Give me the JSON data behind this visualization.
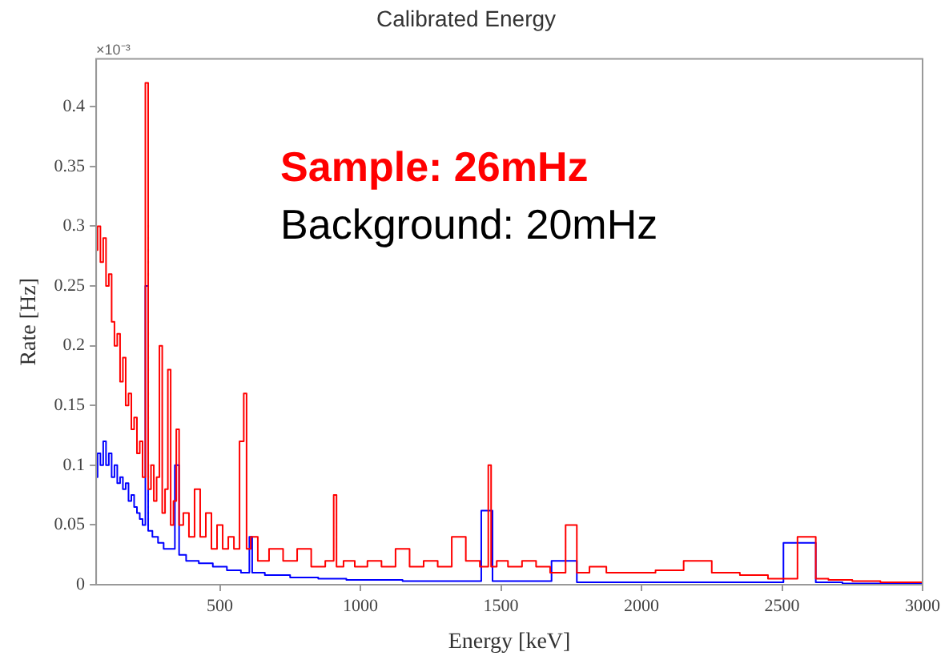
{
  "chart_data": {
    "type": "step",
    "title": "Calibrated Energy",
    "xlabel": "Energy [keV]",
    "ylabel": "Rate [Hz]",
    "annotations": [
      "×10⁻³",
      "Sample: 26mHz",
      "Background: 20mHz"
    ],
    "xlim": [
      60,
      3000
    ],
    "xticks": [
      500,
      1000,
      1500,
      2000,
      2500,
      3000
    ],
    "ylim": [
      0,
      0.44
    ],
    "yticks": [
      0,
      0.05,
      0.1,
      0.15,
      0.2,
      0.25,
      0.3,
      0.35,
      0.4
    ],
    "grid": false,
    "legend": false,
    "marker": "none",
    "line_style": "solid",
    "series": [
      {
        "color": "#ff0000",
        "x": [
          60,
          70,
          80,
          90,
          100,
          110,
          120,
          130,
          140,
          150,
          160,
          170,
          180,
          190,
          200,
          210,
          220,
          230,
          240,
          250,
          260,
          270,
          280,
          290,
          300,
          310,
          320,
          330,
          340,
          350,
          360,
          380,
          400,
          420,
          440,
          460,
          480,
          500,
          520,
          540,
          560,
          580,
          590,
          600,
          620,
          650,
          700,
          750,
          800,
          850,
          900,
          910,
          920,
          960,
          1000,
          1050,
          1100,
          1150,
          1200,
          1250,
          1300,
          1350,
          1400,
          1450,
          1460,
          1470,
          1500,
          1550,
          1600,
          1650,
          1700,
          1760,
          1780,
          1850,
          1900,
          2000,
          2100,
          2200,
          2300,
          2400,
          2500,
          2610,
          2630,
          2700,
          2800,
          2900,
          3000
        ],
        "values": [
          0.28,
          0.3,
          0.27,
          0.29,
          0.25,
          0.26,
          0.22,
          0.2,
          0.21,
          0.17,
          0.19,
          0.15,
          0.16,
          0.13,
          0.14,
          0.11,
          0.12,
          0.09,
          0.42,
          0.08,
          0.1,
          0.07,
          0.09,
          0.2,
          0.06,
          0.08,
          0.18,
          0.05,
          0.07,
          0.13,
          0.05,
          0.06,
          0.04,
          0.08,
          0.04,
          0.06,
          0.03,
          0.05,
          0.03,
          0.04,
          0.03,
          0.12,
          0.16,
          0.03,
          0.04,
          0.02,
          0.03,
          0.02,
          0.03,
          0.015,
          0.02,
          0.075,
          0.015,
          0.02,
          0.015,
          0.02,
          0.015,
          0.03,
          0.015,
          0.02,
          0.015,
          0.04,
          0.02,
          0.015,
          0.1,
          0.015,
          0.02,
          0.015,
          0.02,
          0.015,
          0.01,
          0.05,
          0.01,
          0.015,
          0.01,
          0.01,
          0.012,
          0.02,
          0.01,
          0.008,
          0.005,
          0.04,
          0.005,
          0.004,
          0.003,
          0.002,
          0.002
        ]
      },
      {
        "color": "#0000ff",
        "x": [
          60,
          70,
          80,
          90,
          100,
          110,
          120,
          130,
          140,
          150,
          160,
          170,
          180,
          190,
          200,
          210,
          220,
          230,
          240,
          250,
          270,
          290,
          310,
          330,
          350,
          360,
          400,
          450,
          500,
          550,
          600,
          610,
          620,
          700,
          800,
          900,
          1000,
          1100,
          1200,
          1300,
          1400,
          1460,
          1480,
          1600,
          1760,
          1780,
          2000,
          2200,
          2400,
          2610,
          2630,
          2800,
          3000
        ],
        "values": [
          0.09,
          0.11,
          0.1,
          0.12,
          0.1,
          0.11,
          0.09,
          0.1,
          0.085,
          0.09,
          0.08,
          0.085,
          0.07,
          0.075,
          0.065,
          0.06,
          0.055,
          0.05,
          0.25,
          0.045,
          0.04,
          0.035,
          0.03,
          0.03,
          0.1,
          0.025,
          0.02,
          0.018,
          0.015,
          0.012,
          0.01,
          0.04,
          0.01,
          0.008,
          0.006,
          0.005,
          0.004,
          0.004,
          0.003,
          0.003,
          0.003,
          0.062,
          0.003,
          0.003,
          0.02,
          0.002,
          0.002,
          0.002,
          0.002,
          0.035,
          0.002,
          0.001,
          0.001
        ]
      }
    ]
  }
}
